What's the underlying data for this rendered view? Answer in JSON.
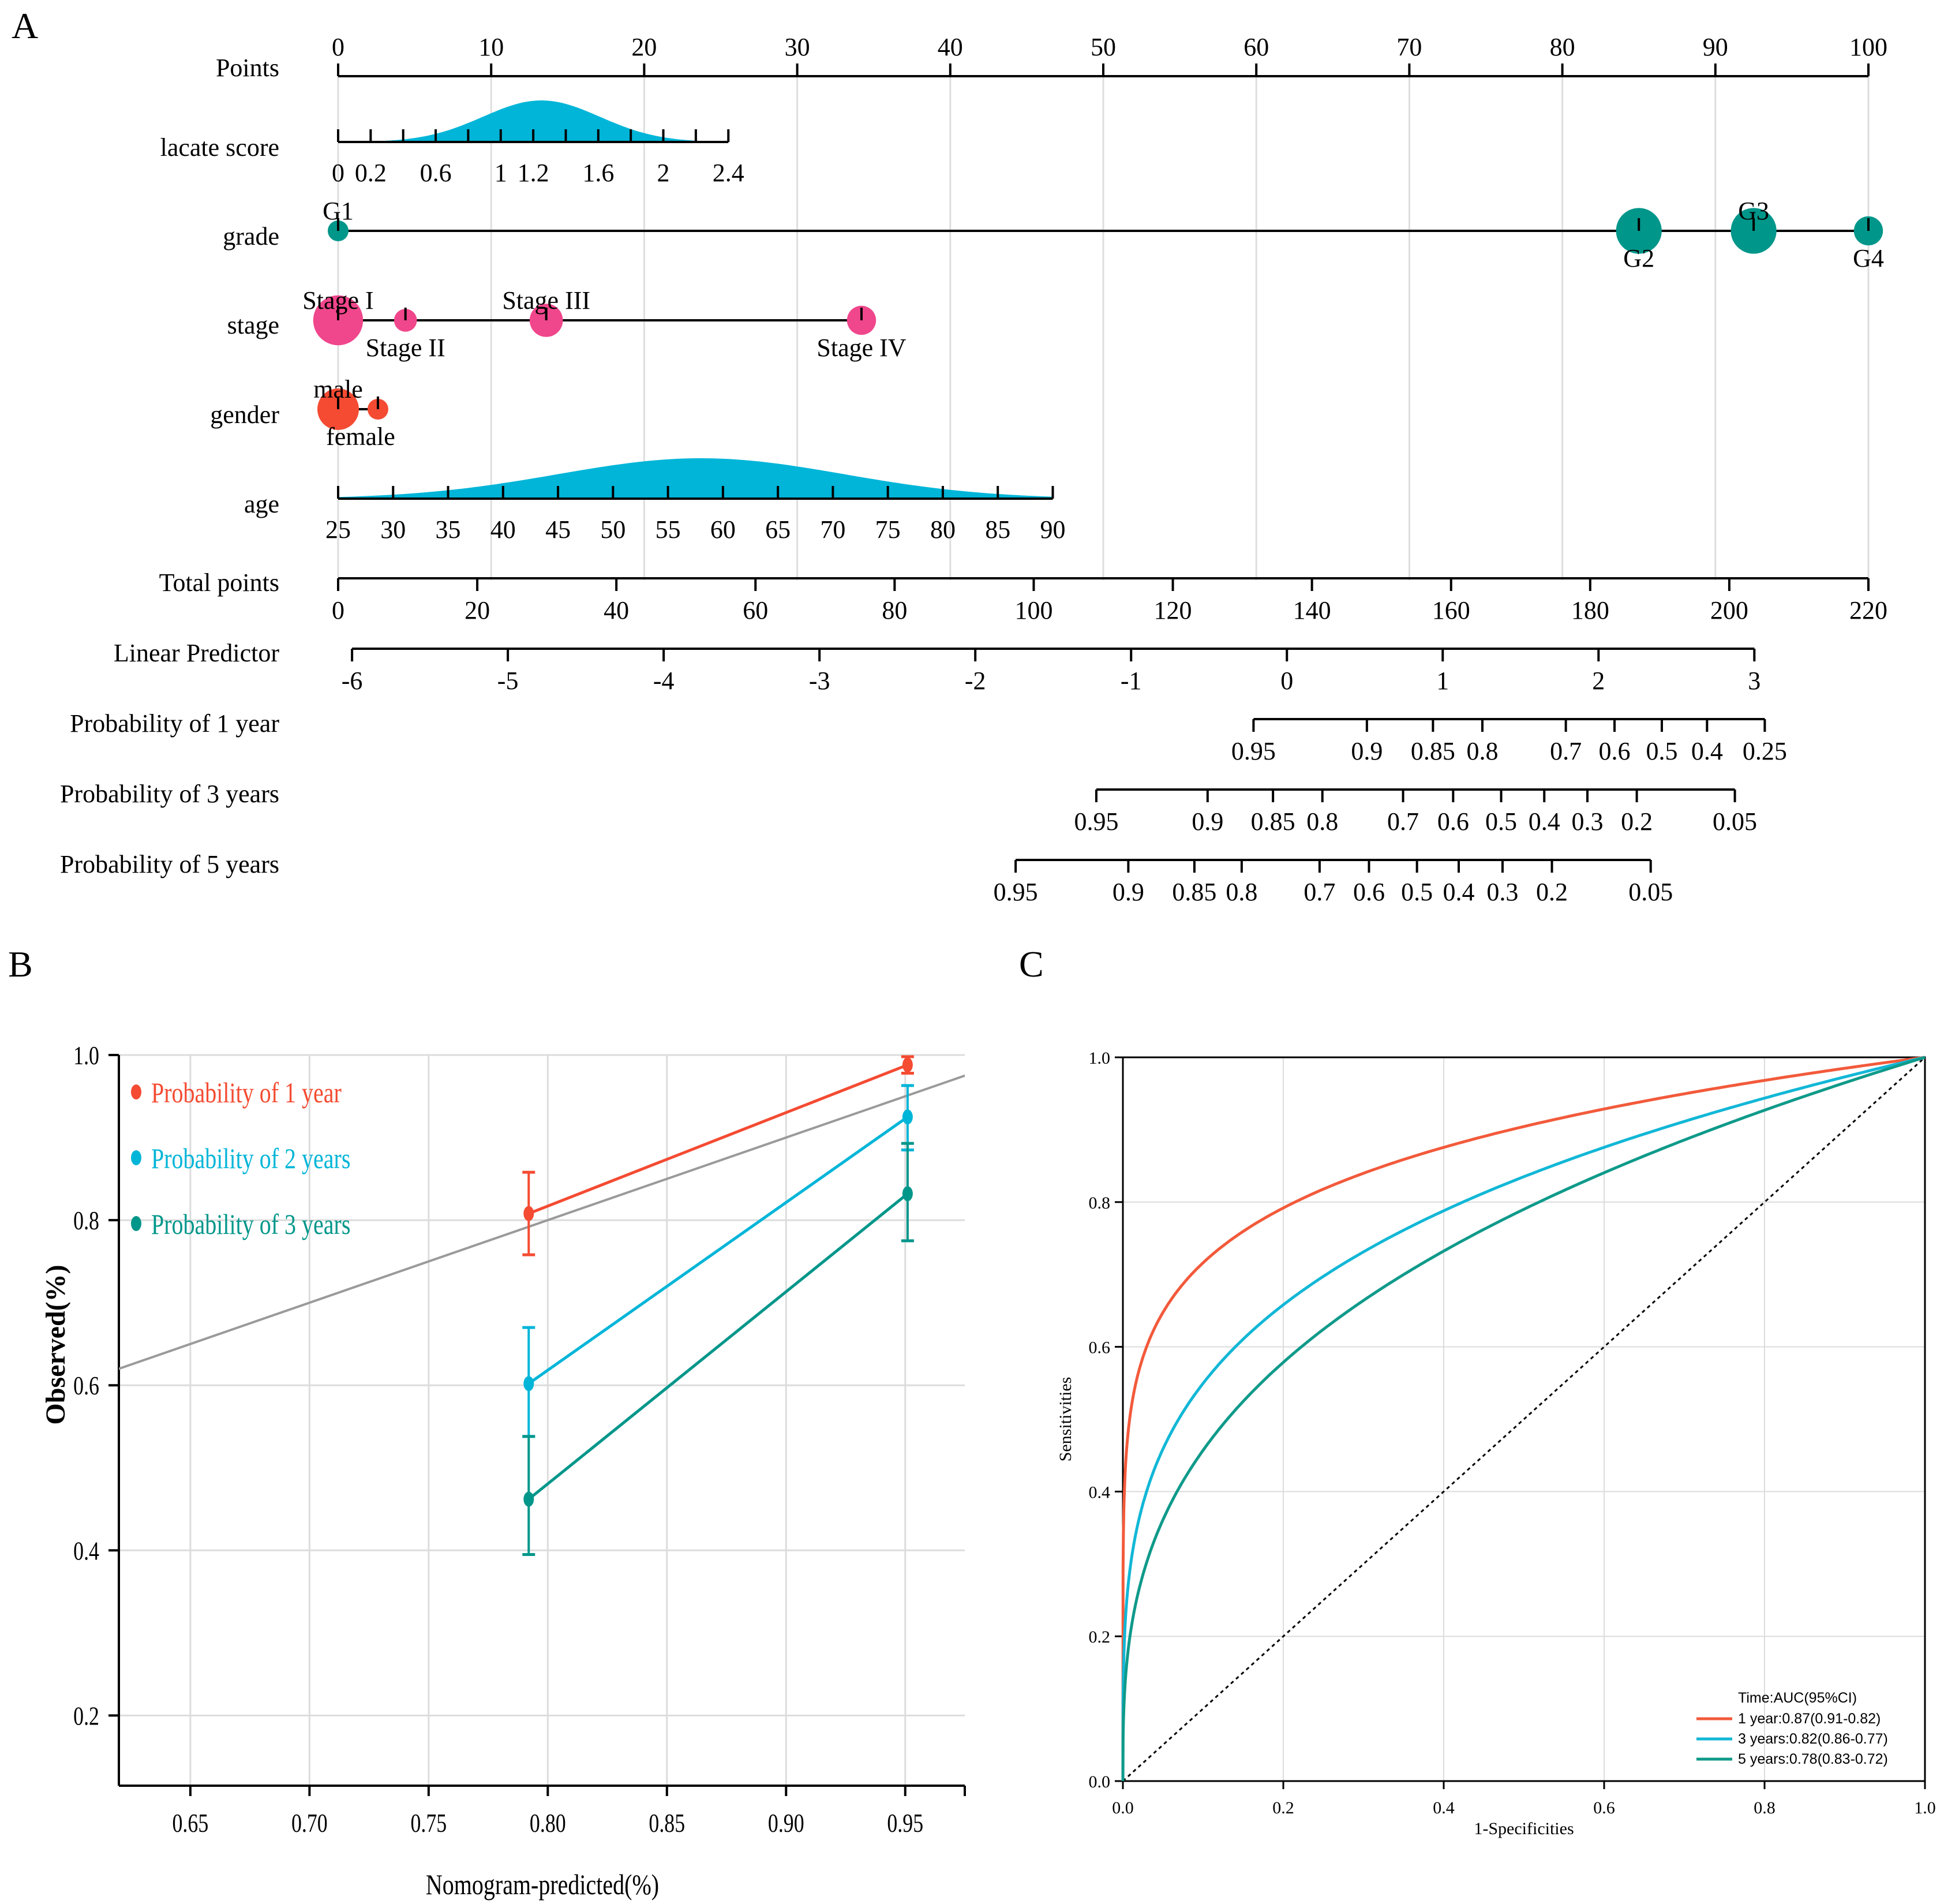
{
  "panel_labels": {
    "a": "A",
    "b": "B",
    "c": "C"
  },
  "colors": {
    "teal": "#00968a",
    "cyan": "#00b5d8",
    "pink": "#f0468c",
    "red": "#f44b32",
    "roc_red": "#f25a3b",
    "roc_cyan": "#12b7d6",
    "roc_teal": "#0f9a8a",
    "grid": "#dcdcdc",
    "ideal": "#9a9a9a"
  },
  "chart_data": [
    {
      "type": "nomogram",
      "panel": "A",
      "points_axis": {
        "label": "Points",
        "min": 0,
        "max": 100,
        "ticks": [
          0,
          10,
          20,
          30,
          40,
          50,
          60,
          70,
          80,
          90,
          100
        ]
      },
      "variables": [
        {
          "name": "lacate score",
          "kind": "continuous",
          "range": [
            0,
            2.4
          ],
          "points_range": [
            0,
            25.5
          ],
          "tick_labels": [
            "0",
            "0.2",
            "0.6",
            "1",
            "1.2",
            "1.6",
            "2",
            "2.4"
          ],
          "tick_values": [
            0,
            0.2,
            0.6,
            1,
            1.2,
            1.6,
            2,
            2.4
          ],
          "minor_ticks": [
            0.4,
            0.8,
            1.4,
            1.8,
            2.2
          ],
          "density_peak": 1.25,
          "density_sd": 0.36
        },
        {
          "name": "grade",
          "kind": "categorical",
          "levels": [
            {
              "label": "G1",
              "points": 0,
              "size": 1,
              "label_pos": "above"
            },
            {
              "label": "G2",
              "points": 85,
              "size": 2.2,
              "label_pos": "below"
            },
            {
              "label": "G3",
              "points": 92.5,
              "size": 2.2,
              "label_pos": "above"
            },
            {
              "label": "G4",
              "points": 100,
              "size": 1.4,
              "label_pos": "below"
            }
          ]
        },
        {
          "name": "stage",
          "kind": "categorical",
          "levels": [
            {
              "label": "Stage I",
              "points": 0,
              "size": 2.4,
              "label_pos": "above"
            },
            {
              "label": "Stage II",
              "points": 4.4,
              "size": 1.1,
              "label_pos": "below"
            },
            {
              "label": "Stage III",
              "points": 13.6,
              "size": 1.6,
              "label_pos": "above"
            },
            {
              "label": "Stage IV",
              "points": 34.2,
              "size": 1.4,
              "label_pos": "below"
            }
          ]
        },
        {
          "name": "gender",
          "kind": "categorical",
          "levels": [
            {
              "label": "male",
              "points": 0,
              "size": 2.0,
              "label_pos": "above"
            },
            {
              "label": "female",
              "points": 2.6,
              "size": 1.0,
              "label_pos": "below"
            }
          ]
        },
        {
          "name": "age",
          "kind": "continuous",
          "range": [
            25,
            90
          ],
          "points_range": [
            0,
            46.7
          ],
          "tick_labels": [
            "25",
            "30",
            "35",
            "40",
            "45",
            "50",
            "55",
            "60",
            "65",
            "70",
            "75",
            "80",
            "85",
            "90"
          ],
          "tick_values": [
            25,
            30,
            35,
            40,
            45,
            50,
            55,
            60,
            65,
            70,
            75,
            80,
            85,
            90
          ],
          "minor_ticks": [],
          "density_peak": 58,
          "density_sd": 13
        }
      ],
      "total_points_axis": {
        "label": "Total points",
        "min": 0,
        "max": 220,
        "ticks": [
          0,
          20,
          40,
          60,
          80,
          100,
          120,
          140,
          160,
          180,
          200,
          220
        ]
      },
      "linear_predictor": {
        "label": "Linear Predictor",
        "ticks": [
          -6,
          -5,
          -4,
          -3,
          -2,
          -1,
          0,
          1,
          2,
          3
        ],
        "total_points_at": [
          2,
          24.4,
          46.8,
          69.2,
          91.6,
          114,
          136.4,
          158.8,
          181.2,
          203.6
        ]
      },
      "probabilities": [
        {
          "label": "Probability of 1 year",
          "ticks": [
            "0.95",
            "0.9",
            "0.85",
            "0.8",
            "0.7",
            "0.6",
            "0.5",
            "0.4",
            "0.25"
          ],
          "total_points_at": [
            131.6,
            147.9,
            157.4,
            164.5,
            176.5,
            183.5,
            190.3,
            196.8,
            205.1
          ]
        },
        {
          "label": "Probability of 3 years",
          "ticks": [
            "0.95",
            "0.9",
            "0.85",
            "0.8",
            "0.7",
            "0.6",
            "0.5",
            "0.4",
            "0.3",
            "0.2",
            "0.05"
          ],
          "total_points_at": [
            109,
            125,
            134.4,
            141.5,
            153.1,
            160.3,
            167.2,
            173.4,
            179.6,
            186.7,
            200.8
          ]
        },
        {
          "label": "Probability of 5 years",
          "ticks": [
            "0.95",
            "0.9",
            "0.85",
            "0.8",
            "0.7",
            "0.6",
            "0.5",
            "0.4",
            "0.3",
            "0.2",
            "0.05"
          ],
          "total_points_at": [
            97.4,
            113.6,
            123.1,
            129.9,
            141.1,
            148.2,
            155.1,
            161.1,
            167.4,
            174.5,
            188.7
          ]
        }
      ]
    },
    {
      "type": "calibration",
      "panel": "B",
      "xlabel": "Nomogram-predicted(%)",
      "ylabel": "Observed(%)",
      "xlim": [
        0.62,
        0.975
      ],
      "ylim": [
        0.115,
        1.0
      ],
      "xticks": [
        "0.65",
        "0.70",
        "0.75",
        "0.80",
        "0.85",
        "0.90",
        "0.95"
      ],
      "xtick_values": [
        0.65,
        0.7,
        0.75,
        0.8,
        0.85,
        0.9,
        0.95
      ],
      "yticks": [
        "0.2",
        "0.4",
        "0.6",
        "0.8",
        "1.0"
      ],
      "ytick_values": [
        0.2,
        0.4,
        0.6,
        0.8,
        1.0
      ],
      "series": [
        {
          "name": "Probability of 1 year",
          "color": "#f44b32",
          "points": [
            {
              "x": 0.792,
              "y": 0.808,
              "lo": 0.758,
              "hi": 0.858
            },
            {
              "x": 0.951,
              "y": 0.988,
              "lo": 0.978,
              "hi": 0.998
            }
          ]
        },
        {
          "name": "Probability of 2 years",
          "color": "#00b5d8",
          "points": [
            {
              "x": 0.792,
              "y": 0.602,
              "lo": 0.538,
              "hi": 0.67
            },
            {
              "x": 0.951,
              "y": 0.925,
              "lo": 0.885,
              "hi": 0.963
            }
          ]
        },
        {
          "name": "Probability of 3 years",
          "color": "#00968a",
          "points": [
            {
              "x": 0.792,
              "y": 0.462,
              "lo": 0.395,
              "hi": 0.538
            },
            {
              "x": 0.951,
              "y": 0.832,
              "lo": 0.775,
              "hi": 0.893
            }
          ]
        }
      ]
    },
    {
      "type": "roc",
      "panel": "C",
      "xlabel": "1-Specificities",
      "ylabel": "Sensitivities",
      "xlim": [
        0,
        1
      ],
      "ylim": [
        0,
        1
      ],
      "ticks": [
        "0.0",
        "0.2",
        "0.4",
        "0.6",
        "0.8",
        "1.0"
      ],
      "tick_values": [
        0,
        0.2,
        0.4,
        0.6,
        0.8,
        1.0
      ],
      "legend_title": "Time:AUC(95%CI)",
      "series": [
        {
          "name": "1 year:0.87(0.91-0.82)",
          "color": "#f25a3b",
          "shape": 0.145
        },
        {
          "name": "3 years:0.82(0.86-0.77)",
          "color": "#12b7d6",
          "shape": 0.26
        },
        {
          "name": "5 years:0.78(0.83-0.72)",
          "color": "#0f9a8a",
          "shape": 0.34
        }
      ]
    }
  ]
}
